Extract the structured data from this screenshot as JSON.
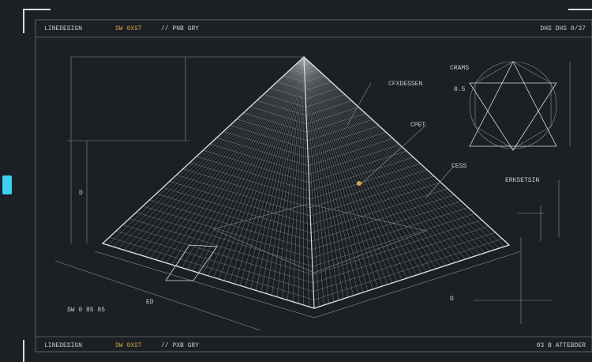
{
  "header": {
    "title": "LINEDESIGN",
    "code": "SW 0XST",
    "subtitle": "// PNB GRY",
    "right": "DHS DHS 0/37"
  },
  "footer": {
    "title": "LINEDESIGN",
    "code": "SW 0XST",
    "subtitle": "// PXB GRY",
    "right": "03 B ATTEBDER"
  },
  "labels": {
    "apex_note": "CFXDESSEN",
    "inner_note": "CPET",
    "edge_note": "CESS",
    "detail_title": "CRAMS",
    "detail_note": "0.5",
    "side_note": "ERKSETSIN",
    "left_dim": "D",
    "bottom_note": "SW 0 85 85",
    "base_dim_a": "ED",
    "base_dim_b": "D"
  }
}
